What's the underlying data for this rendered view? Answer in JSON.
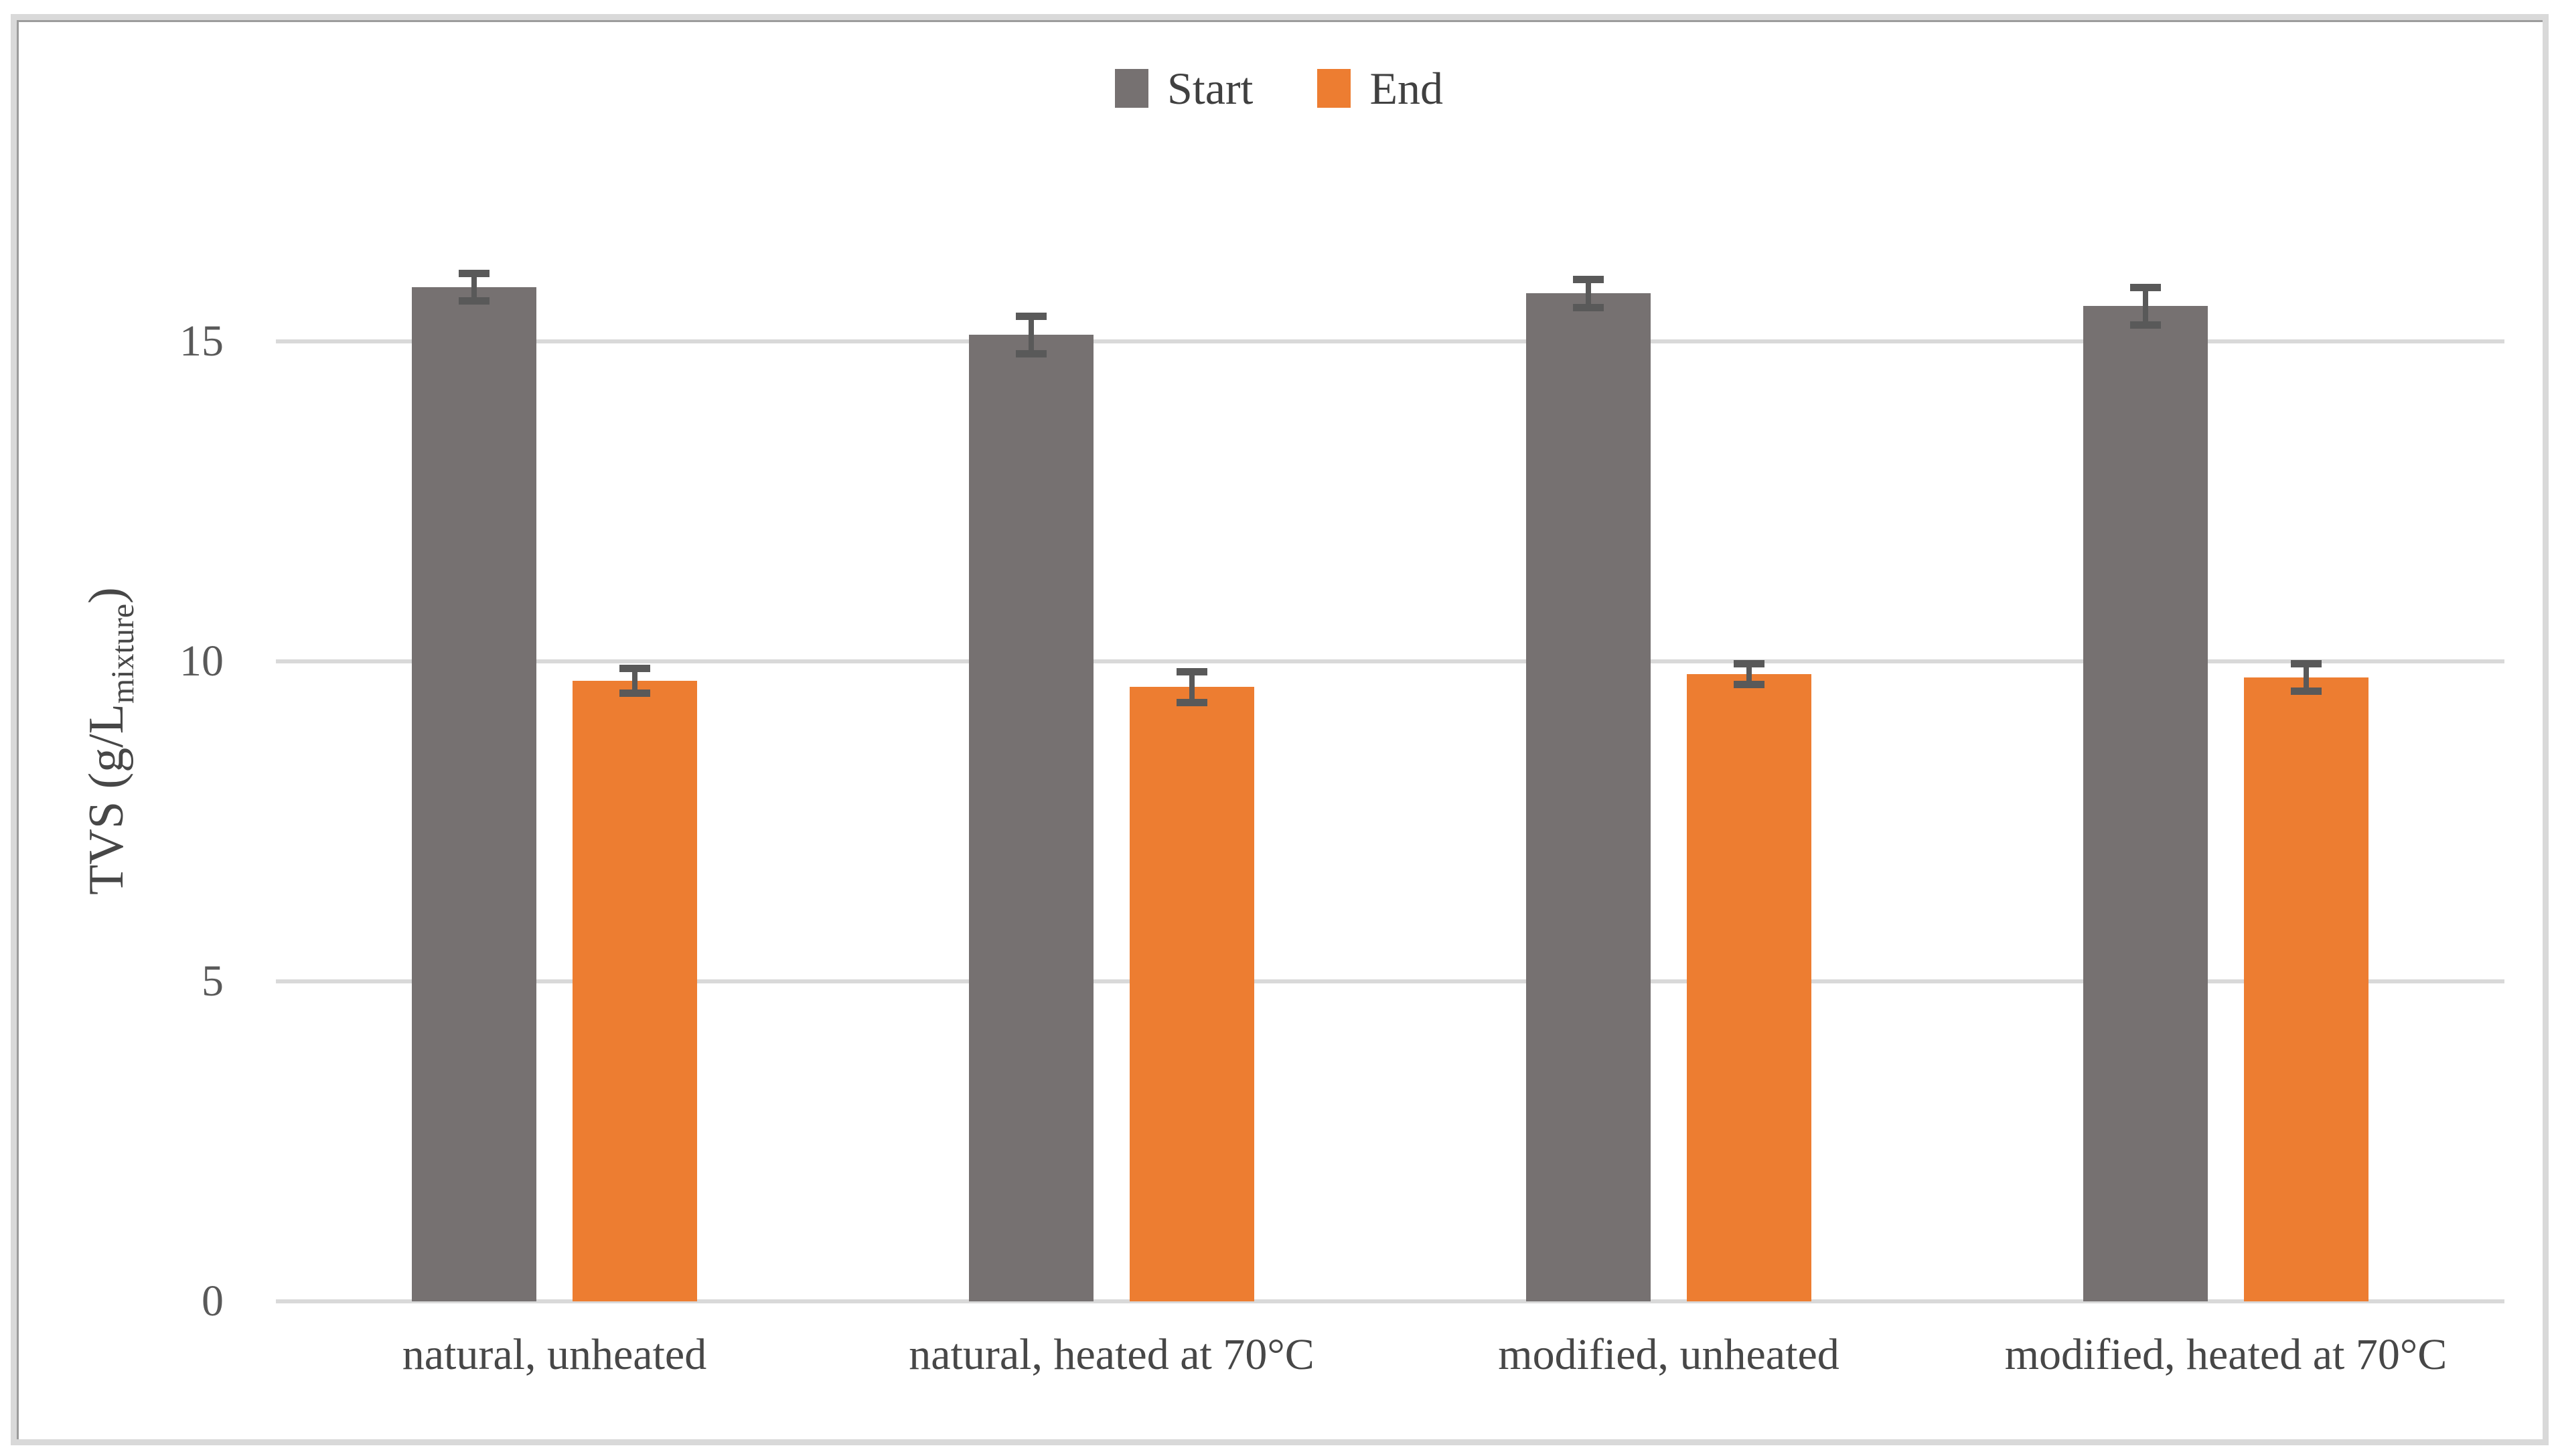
{
  "legend": {
    "position": "top-center"
  },
  "axis": {
    "y_title_main": "TVS (g/L",
    "y_title_sub": "mixture",
    "y_title_close": ")"
  },
  "colors": {
    "start_series": "#767171",
    "end_series": "#ED7D31",
    "error_bar": "#595959",
    "gridline": "#D9D9D9",
    "tick_text": "#595959",
    "label_text": "#474747"
  },
  "chart_data": {
    "type": "bar",
    "title": "",
    "categories": [
      "natural, unheated",
      "natural, heated at 70°C",
      "modified, unheated",
      "modified, heated at 70°C"
    ],
    "series": [
      {
        "name": "Start",
        "color": "#767171",
        "values": [
          15.85,
          15.1,
          15.75,
          15.55
        ],
        "errors": [
          0.27,
          0.35,
          0.28,
          0.35
        ]
      },
      {
        "name": "End",
        "color": "#ED7D31",
        "values": [
          9.7,
          9.6,
          9.8,
          9.75
        ],
        "errors": [
          0.25,
          0.3,
          0.22,
          0.27
        ]
      }
    ],
    "xlabel": "",
    "ylabel": "TVS (g/L_mixture)",
    "ylim": [
      0,
      17.5
    ],
    "yticks": [
      0,
      5,
      10,
      15
    ],
    "grid": true,
    "legend_position": "top-center",
    "error_bars": true
  }
}
